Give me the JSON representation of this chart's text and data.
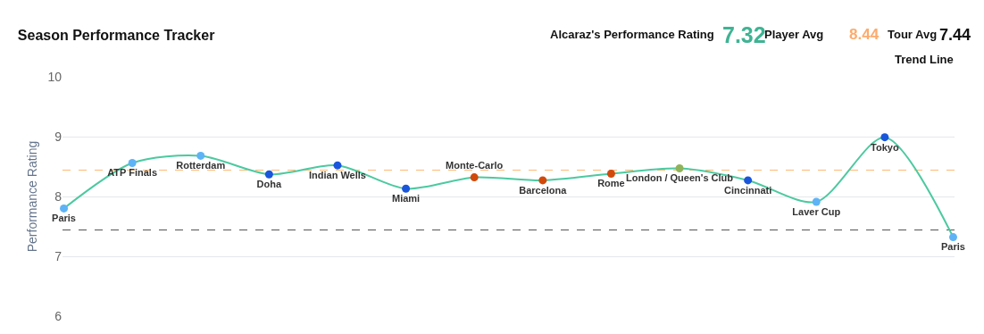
{
  "chart_data": {
    "type": "line",
    "title": "Season Performance Tracker",
    "ylabel": "Performance Rating",
    "categories": [
      "Paris",
      "ATP Finals",
      "Rotterdam",
      "Doha",
      "Indian Wells",
      "Miami",
      "Monte-Carlo",
      "Barcelona",
      "Rome",
      "London / Queen's Club",
      "Cincinnati",
      "Laver Cup",
      "Tokyo",
      "Paris"
    ],
    "series": [
      {
        "color": "#4cc9a0",
        "values": [
          7.8,
          8.56,
          8.68,
          8.37,
          8.52,
          8.13,
          8.32,
          8.27,
          8.38,
          8.47,
          8.27,
          7.91,
          8.99,
          7.32
        ],
        "colors": [
          "#5eb3f6",
          "#5eb3f6",
          "#5eb3f6",
          "#1a56db",
          "#1a56db",
          "#1a56db",
          "#d14a0c",
          "#d14a0c",
          "#d14a0c",
          "#8fb35a",
          "#1a56db",
          "#5eb3f6",
          "#1a56db",
          "#5eb3f6"
        ]
      }
    ],
    "ylim": [
      6,
      10
    ],
    "yticks": [
      6,
      7,
      8,
      9,
      10
    ],
    "grid": "y",
    "marker": "circle",
    "line_style": "solid",
    "tick_labels": "y",
    "legend": false,
    "ref_lines": [
      {
        "axis": "y",
        "value": 8.44,
        "color": "#fdba74",
        "line_style": "dashed"
      },
      {
        "axis": "y",
        "value": 7.44,
        "color": "#555555",
        "line_style": "dashed"
      }
    ],
    "annotations": [
      "Alcaraz's Performance Rating",
      "7.32",
      "Player Avg",
      "8.44",
      "Tour Avg",
      "7.44",
      "Trend Line"
    ]
  }
}
